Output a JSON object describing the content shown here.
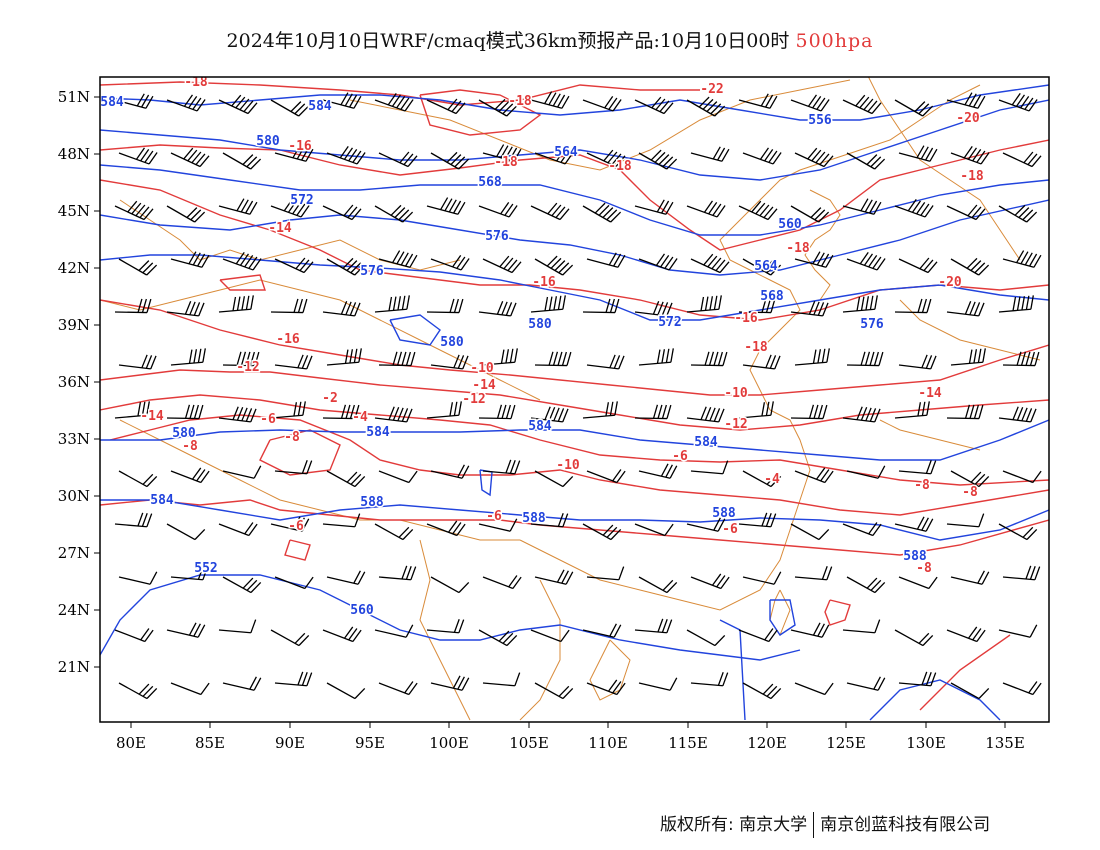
{
  "title": {
    "main": "2024年10月10日WRF/cmaq模式36km预报产品:10月10日00时",
    "level": "500hpa"
  },
  "colors": {
    "height_contour": "#2244dd",
    "temperature_contour": "#e23b3b",
    "coastline": "#d98b3a",
    "wind_barb": "#000000",
    "frame": "#000000"
  },
  "map": {
    "lon_range": [
      78,
      138
    ],
    "lat_range": [
      18,
      52
    ],
    "x_ticks": [
      "80E",
      "85E",
      "90E",
      "95E",
      "100E",
      "105E",
      "110E",
      "115E",
      "120E",
      "125E",
      "130E",
      "135E"
    ],
    "y_ticks": [
      "51N",
      "48N",
      "45N",
      "42N",
      "39N",
      "36N",
      "33N",
      "30N",
      "27N",
      "24N",
      "21N"
    ],
    "height_labels": [
      "584",
      "584",
      "580",
      "564",
      "556",
      "568",
      "572",
      "576",
      "560",
      "564",
      "568",
      "572",
      "576",
      "576",
      "580",
      "580",
      "580",
      "584",
      "584",
      "584",
      "584",
      "588",
      "588",
      "588",
      "588",
      "552",
      "560"
    ],
    "temperature_labels": [
      "-18",
      "-18",
      "-16",
      "-18",
      "-18",
      "-22",
      "-20",
      "-18",
      "-14",
      "-16",
      "-18",
      "-20",
      "-16",
      "-18",
      "-16",
      "-12",
      "-10",
      "-14",
      "-12",
      "-10",
      "-14",
      "-12",
      "-14",
      "-8",
      "-6",
      "-8",
      "-4",
      "-2",
      "-6",
      "-10",
      "-8",
      "-8",
      "-4",
      "-6",
      "-6",
      "-6",
      "-8",
      "-10",
      "-12",
      "-8",
      "-6"
    ]
  },
  "footer": {
    "left": "版权所有: 南京大学",
    "right": "南京创蓝科技有限公司"
  }
}
